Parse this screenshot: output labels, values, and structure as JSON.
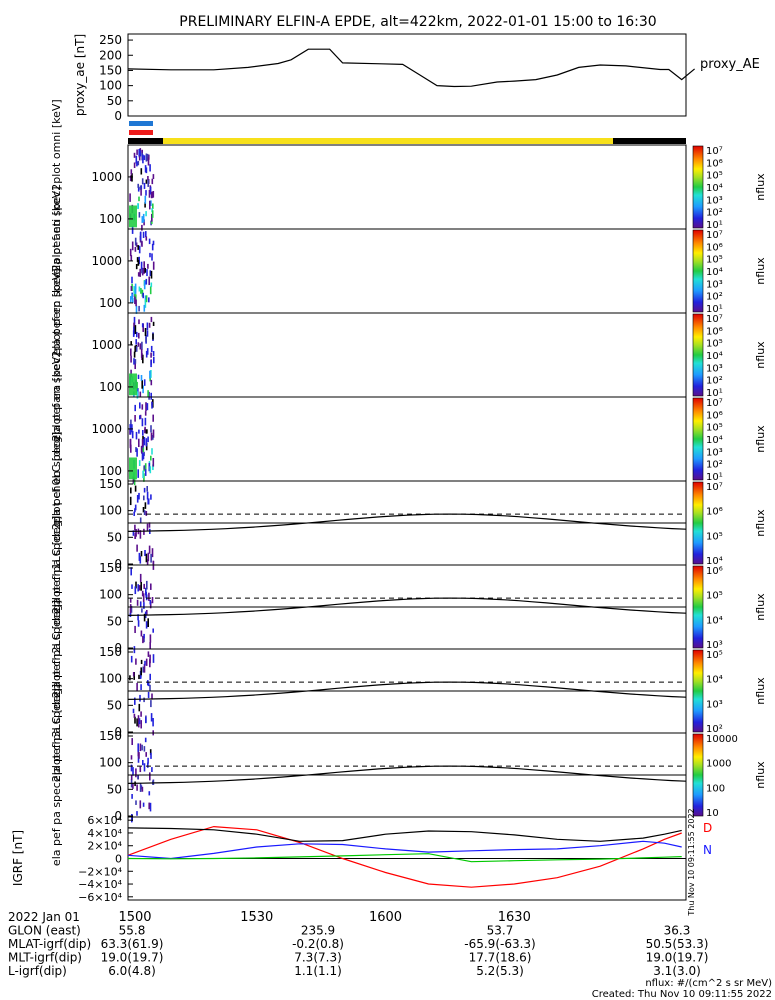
{
  "title": "PRELIMINARY ELFIN-A EPDE, alt=422km, 2022-01-01 15:00 to 16:30",
  "colors": {
    "bar_blue": "#1f77d4",
    "bar_red": "#ee1c1c",
    "bar_yellow": "#f7e01a",
    "black": "#000000"
  },
  "chart_data": [
    {
      "type": "line",
      "panel": "proxy_ae",
      "ylabel": "proxy_ae [nT]",
      "legend": "proxy_AE",
      "yticks": [
        250,
        200,
        150,
        100,
        50,
        0
      ],
      "ylim": [
        0,
        270
      ],
      "x_minutes": [
        0,
        10,
        20,
        28,
        35,
        38,
        42,
        47,
        50,
        59,
        64,
        68,
        72,
        76,
        80,
        86,
        90,
        95,
        100,
        105,
        110,
        116,
        124,
        126,
        129,
        132
      ],
      "values": [
        155,
        152,
        152,
        160,
        173,
        185,
        220,
        220,
        175,
        172,
        170,
        135,
        100,
        97,
        98,
        112,
        115,
        120,
        135,
        160,
        168,
        165,
        153,
        153,
        120,
        155
      ]
    },
    {
      "type": "heatmap",
      "panel": "omni",
      "ylabel": "ela pef en spec2plot omni [keV]",
      "yticks": [
        "1000",
        "100"
      ],
      "colorbar_label": "nflux",
      "colorbar_ticks": [
        "10⁷",
        "10⁶",
        "10⁵",
        "10⁴",
        "10³",
        "10²",
        "10¹"
      ]
    },
    {
      "type": "heatmap",
      "panel": "anti",
      "ylabel": "ela pef en spec2plot anti [keV]",
      "yticks": [
        "1000",
        "100"
      ],
      "colorbar_label": "nflux",
      "colorbar_ticks": [
        "10⁷",
        "10⁶",
        "10⁵",
        "10⁴",
        "10³",
        "10²",
        "10¹"
      ]
    },
    {
      "type": "heatmap",
      "panel": "perp",
      "ylabel": "ela pef en spec2plot perp [keV]",
      "yticks": [
        "1000",
        "100"
      ],
      "colorbar_label": "nflux",
      "colorbar_ticks": [
        "10⁷",
        "10⁶",
        "10⁵",
        "10⁴",
        "10³",
        "10²",
        "10¹"
      ]
    },
    {
      "type": "heatmap",
      "panel": "para",
      "ylabel": "ela pef en spec2plot para [keV]",
      "yticks": [
        "1000",
        "100"
      ],
      "colorbar_label": "nflux",
      "colorbar_ticks": [
        "10⁷",
        "10⁶",
        "10⁵",
        "10⁴",
        "10³",
        "10²",
        "10¹"
      ]
    },
    {
      "type": "heatmap",
      "panel": "ch0LC",
      "ylabel": "ela pef pa spec2plot ch0LC [deg]",
      "yticks": [
        "150",
        "100",
        "50",
        "0"
      ],
      "colorbar_label": "nflux",
      "colorbar_ticks": [
        "10⁷",
        "10⁶",
        "10⁵",
        "10⁴"
      ]
    },
    {
      "type": "heatmap",
      "panel": "ch1LC",
      "ylabel": "ela pef pa spec2plot ch1LC [deg]",
      "yticks": [
        "150",
        "100",
        "50",
        "0"
      ],
      "colorbar_label": "nflux",
      "colorbar_ticks": [
        "10⁶",
        "10⁵",
        "10⁴",
        "10³"
      ]
    },
    {
      "type": "heatmap",
      "panel": "ch2LC",
      "ylabel": "ela pef pa spec2plot ch2LC [deg]",
      "yticks": [
        "150",
        "100",
        "50",
        "0"
      ],
      "colorbar_label": "nflux",
      "colorbar_ticks": [
        "10⁵",
        "10⁴",
        "10³",
        "10²"
      ]
    },
    {
      "type": "heatmap",
      "panel": "ch3LC",
      "ylabel": "ela pef pa spec2plot ch3LC [deg]",
      "yticks": [
        "150",
        "100",
        "50",
        "0"
      ],
      "colorbar_label": "nflux",
      "colorbar_ticks": [
        "10000",
        "1000",
        "100",
        "10"
      ]
    },
    {
      "type": "line",
      "panel": "IGRF",
      "ylabel": "IGRF [nT]",
      "yticks": [
        "6×10⁴",
        "4×10⁴",
        "2×10⁴",
        "0",
        "−2×10⁴",
        "−4×10⁴",
        "−6×10⁴"
      ],
      "ylim": [
        -65000,
        65000
      ],
      "x_minutes": [
        0,
        10,
        20,
        30,
        40,
        50,
        60,
        70,
        80,
        90,
        100,
        110,
        120,
        125,
        129
      ],
      "series": [
        {
          "name": "D",
          "color": "#ff0000",
          "values": [
            5000,
            30000,
            50000,
            45000,
            25000,
            0,
            -22000,
            -40000,
            -45000,
            -40000,
            -30000,
            -12000,
            15000,
            30000,
            40000
          ]
        },
        {
          "name": "N",
          "color": "#1a1aff",
          "values": [
            5000,
            0,
            8000,
            18000,
            23000,
            22000,
            15000,
            10000,
            12000,
            14000,
            15000,
            20000,
            27000,
            24000,
            18000
          ]
        },
        {
          "name": "",
          "color": "#000000",
          "values": [
            48000,
            47000,
            45000,
            38000,
            27000,
            28000,
            38000,
            43000,
            42000,
            37000,
            30000,
            27000,
            32000,
            38000,
            44000
          ]
        },
        {
          "name": "",
          "color": "#00c800",
          "values": [
            0,
            -500,
            0,
            1000,
            2500,
            4000,
            6000,
            7500,
            -5000,
            -3500,
            -2000,
            -1000,
            1000,
            2000,
            3000
          ]
        }
      ]
    }
  ],
  "time_axis": {
    "ticks": [
      "1500",
      "1530",
      "1600",
      "1630"
    ],
    "rows": [
      {
        "label": "2022 Jan 01",
        "values": [
          "",
          "",
          "",
          ""
        ]
      },
      {
        "label": "GLON (east)",
        "values": [
          "55.8",
          "235.9",
          "53.7",
          "36.3"
        ]
      },
      {
        "label": "MLAT-igrf(dip)",
        "values": [
          "63.3(61.9)",
          "-0.2(0.8)",
          "-65.9(-63.3)",
          "50.5(53.3)"
        ]
      },
      {
        "label": "MLT-igrf(dip)",
        "values": [
          "19.0(19.7)",
          "7.3(7.3)",
          "17.7(18.6)",
          "19.0(19.7)"
        ]
      },
      {
        "label": "L-igrf(dip)",
        "values": [
          "6.0(4.8)",
          "1.1(1.1)",
          "5.2(5.3)",
          "3.1(3.0)"
        ]
      }
    ]
  },
  "footer": {
    "units": "nflux: #/(cm^2 s sr MeV)",
    "created": "Created: Thu Nov 10 09:11:55 2022",
    "sidestamp": "Thu Nov 10 09:11:55 2022"
  }
}
